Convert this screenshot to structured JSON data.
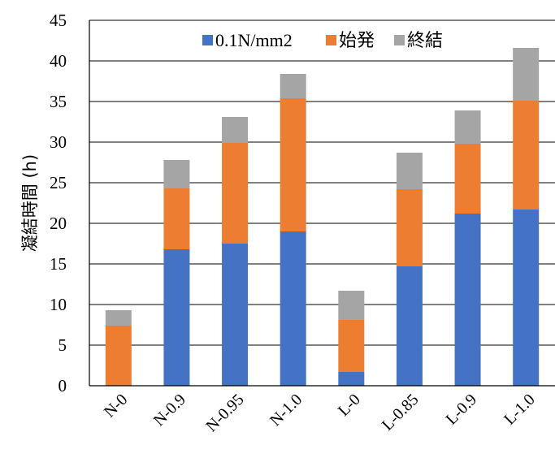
{
  "chart_data": {
    "type": "bar",
    "stacked": true,
    "title": "",
    "xlabel": "",
    "ylabel": "凝結時間 (h)",
    "ylim": [
      0,
      45
    ],
    "yticks": [
      0,
      5,
      10,
      15,
      20,
      25,
      30,
      35,
      40,
      45
    ],
    "grid": "horizontal",
    "legend_position": "top-right",
    "categories": [
      "N-0",
      "N-0.9",
      "N-0.95",
      "N-1.0",
      "L-0",
      "L-0.85",
      "L-0.9",
      "L-1.0"
    ],
    "series": [
      {
        "name": "0.1N/mm2",
        "color": "#4472C4",
        "values": [
          0.0,
          16.8,
          17.5,
          19.0,
          1.7,
          14.7,
          21.2,
          21.7
        ]
      },
      {
        "name": "始発",
        "color": "#ED7D31",
        "values": [
          7.4,
          7.5,
          12.4,
          16.4,
          6.4,
          9.5,
          8.6,
          13.4
        ]
      },
      {
        "name": "終結",
        "color": "#A5A5A5",
        "values": [
          1.9,
          3.5,
          3.2,
          3.0,
          3.6,
          4.5,
          4.1,
          6.5
        ]
      }
    ]
  }
}
